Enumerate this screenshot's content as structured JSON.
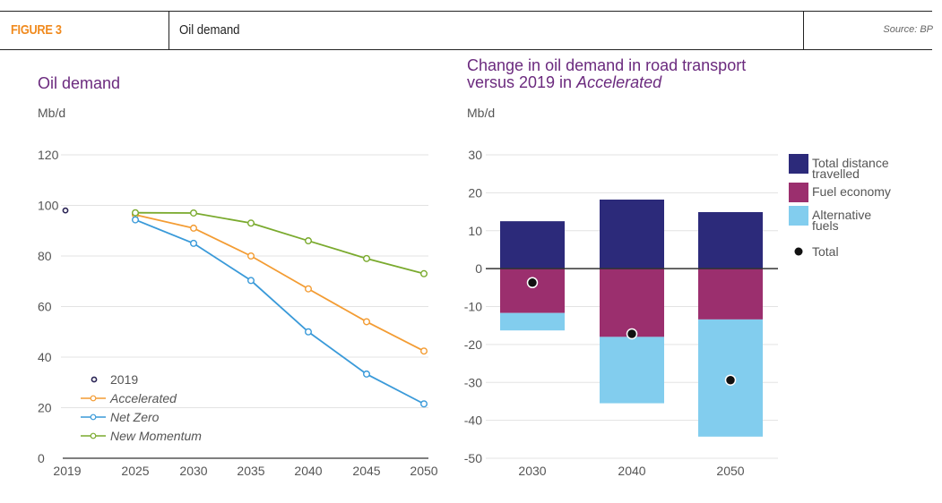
{
  "header": {
    "figure_label": "FIGURE 3",
    "title": "Oil demand",
    "source": "Source: BP"
  },
  "colors": {
    "accent": "#f08a1e",
    "title_purple": "#6b2a7e",
    "accelerated": "#f39c33",
    "net_zero": "#3a9ad9",
    "new_momentum": "#7aaa2e",
    "point_2019": "#2a2455",
    "total_distance": "#2c2a7a",
    "fuel_economy": "#9b2f6e",
    "alternative_fuels": "#82cdee",
    "total": "#111111"
  },
  "chart_data": [
    {
      "type": "line",
      "title": "Oil demand",
      "ylabel": "Mb/d",
      "xlabel": "",
      "ylim": [
        0,
        120
      ],
      "yticks": [
        0,
        20,
        40,
        60,
        80,
        100,
        120
      ],
      "xtick_labels": [
        "2019",
        "2025",
        "2030",
        "2035",
        "2040",
        "2045",
        "2050"
      ],
      "grid": true,
      "legend_position": "bottom-left",
      "point_2019": {
        "name": "2019",
        "x": 2019,
        "y": 98
      },
      "x": [
        2025,
        2030,
        2035,
        2040,
        2045,
        2050
      ],
      "series": [
        {
          "name": "Accelerated",
          "italic": true,
          "color_key": "accelerated",
          "values": [
            96.3,
            91,
            80,
            67,
            54,
            42.4
          ]
        },
        {
          "name": "Net Zero",
          "italic": true,
          "color_key": "net_zero",
          "values": [
            94.3,
            85,
            70.3,
            50,
            33.3,
            21.5
          ]
        },
        {
          "name": "New Momentum",
          "italic": true,
          "color_key": "new_momentum",
          "values": [
            97.1,
            97,
            93,
            86,
            79,
            73
          ]
        }
      ]
    },
    {
      "type": "bar",
      "stacked": true,
      "title_line1": "Change in oil demand in road transport",
      "title_line2_prefix": "versus 2019 in ",
      "title_line2_italic": "Accelerated",
      "ylabel": "Mb/d",
      "xlabel": "",
      "ylim": [
        -50,
        30
      ],
      "yticks": [
        -50,
        -40,
        -30,
        -20,
        -10,
        0,
        10,
        20,
        30
      ],
      "categories": [
        "2030",
        "2040",
        "2050"
      ],
      "grid": true,
      "legend_position": "right",
      "series": [
        {
          "name": "Total distance travelled",
          "name_lines": [
            "Total distance",
            "travelled"
          ],
          "color_key": "total_distance",
          "values": [
            12.5,
            18.2,
            14.9
          ]
        },
        {
          "name": "Fuel economy",
          "name_lines": [
            "Fuel economy"
          ],
          "color_key": "fuel_economy",
          "values": [
            -11.7,
            -18.0,
            -13.4
          ]
        },
        {
          "name": "Alternative fuels",
          "name_lines": [
            "Alternative",
            "fuels"
          ],
          "color_key": "alternative_fuels",
          "values": [
            -4.6,
            -17.5,
            -30.9
          ]
        }
      ],
      "total": {
        "name": "Total",
        "values": [
          -3.7,
          -17.2,
          -29.4
        ]
      }
    }
  ]
}
